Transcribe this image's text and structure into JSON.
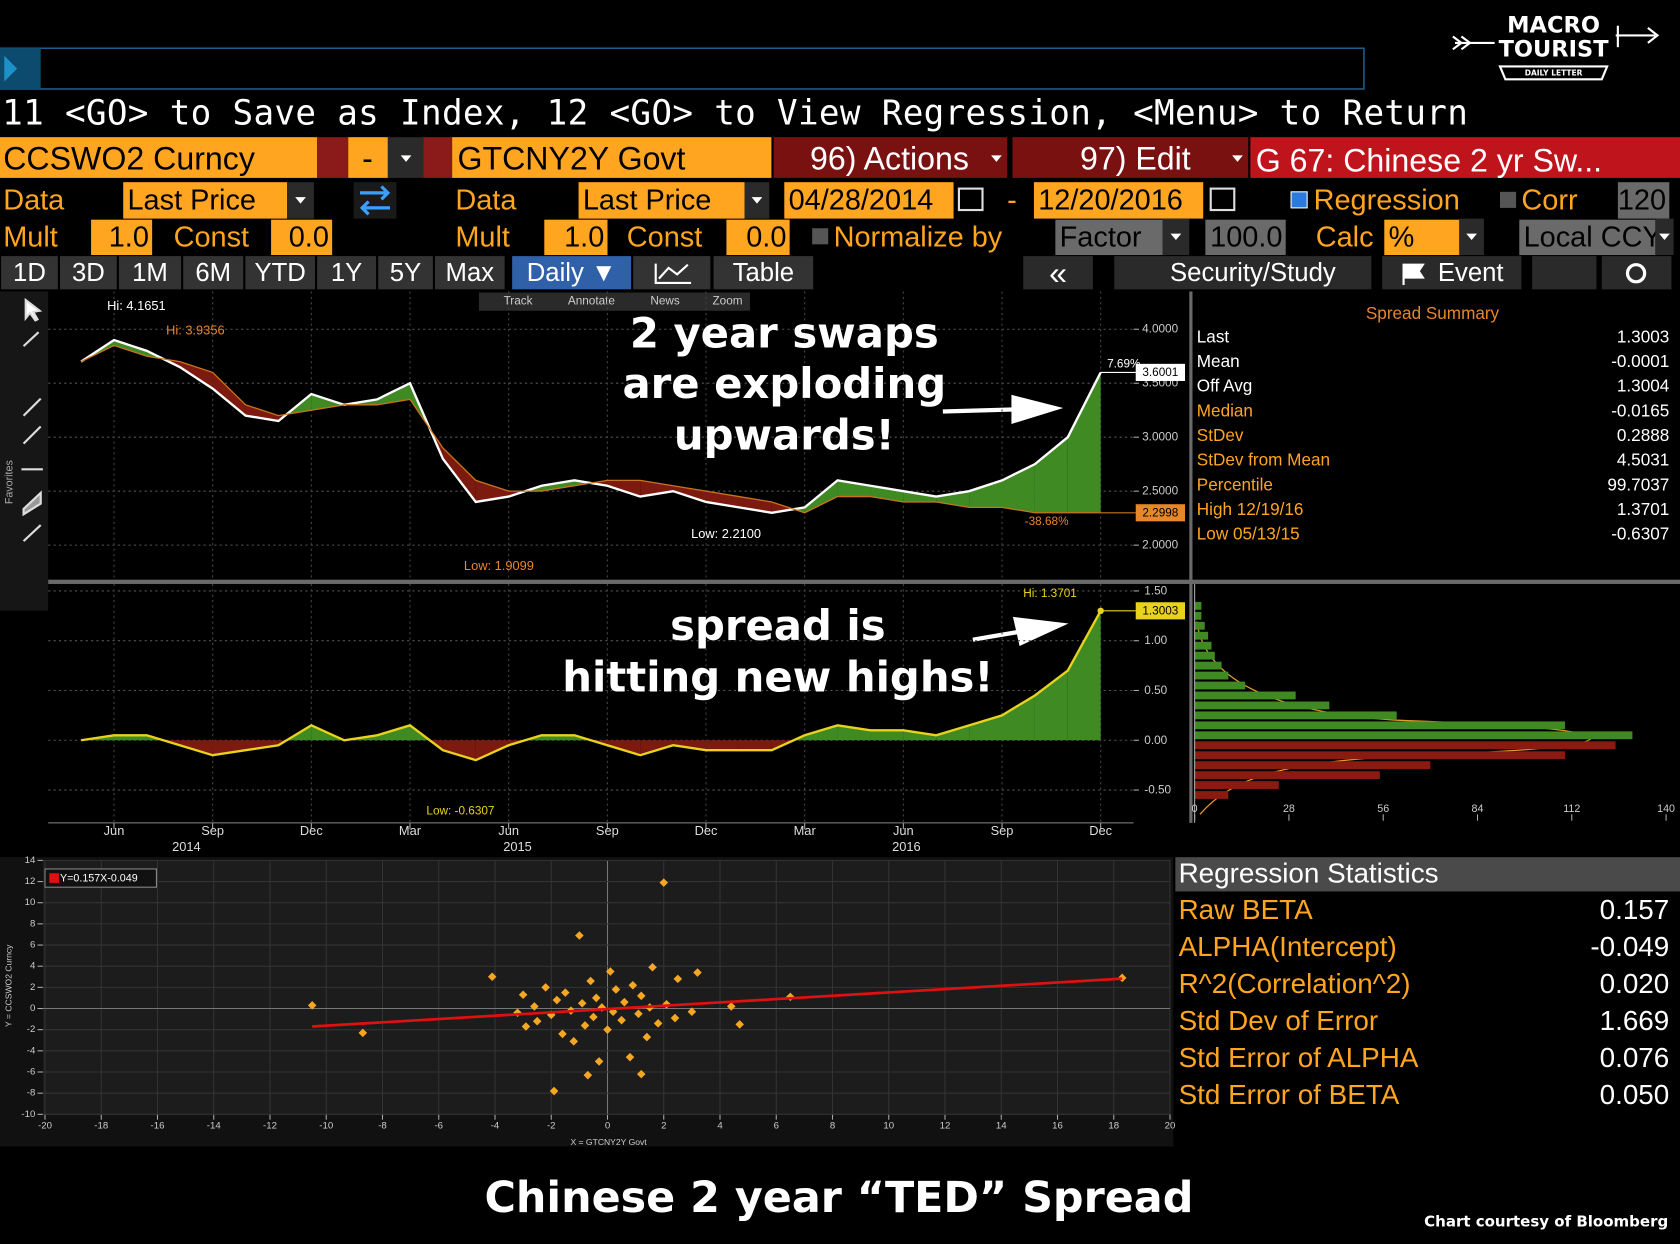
{
  "command_line": "11 <GO> to Save as Index, 12 <GO> to View Regression, <Menu> to Return",
  "logo": {
    "line1": "MACRO",
    "line2": "TOURIST",
    "tag": "DAILY LETTER"
  },
  "toolbar": {
    "row1": {
      "security1": "CCSWO2 Curncy",
      "op": "-",
      "security2": "GTCNY2Y Govt",
      "actions": "96) Actions",
      "edit": "97) Edit",
      "title": "G 67: Chinese 2 yr Sw..."
    },
    "row2": [
      "Data",
      "Last Price",
      "Data",
      "Last Price",
      "04/28/2014",
      "-",
      "12/20/2016",
      "Regression",
      "Corr",
      "120"
    ],
    "row3": [
      "Mult",
      "1.0",
      "Const",
      "0.0",
      "Mult",
      "1.0",
      "Const",
      "0.0",
      "Normalize by",
      "Factor",
      "100.0",
      "Calc",
      "%",
      "Local CCY"
    ],
    "tabs": [
      "1D",
      "3D",
      "1M",
      "6M",
      "YTD",
      "1Y",
      "5Y",
      "Max",
      "Daily ▼",
      "Table"
    ],
    "right_tabs": [
      "«",
      "Security/Study",
      "Event"
    ]
  },
  "favorites": "Favorites",
  "chart_menu": [
    "Track",
    "Annotate",
    "News",
    "Zoom"
  ],
  "callouts": {
    "swaps": [
      "2 year swaps",
      "are exploding",
      "upwards!"
    ],
    "spread": [
      "spread is",
      "hitting new highs!"
    ]
  },
  "chart_data": [
    {
      "type": "line",
      "x": [
        "2014-05",
        "2014-06",
        "2014-07",
        "2014-08",
        "2014-09",
        "2014-10",
        "2014-11",
        "2014-12",
        "2015-01",
        "2015-02",
        "2015-03",
        "2015-04",
        "2015-05",
        "2015-06",
        "2015-07",
        "2015-08",
        "2015-09",
        "2015-10",
        "2015-11",
        "2015-12",
        "2016-01",
        "2016-02",
        "2016-03",
        "2016-04",
        "2016-05",
        "2016-06",
        "2016-07",
        "2016-08",
        "2016-09",
        "2016-10",
        "2016-11",
        "2016-12"
      ],
      "xlim": [
        "2014-04",
        "2017-01"
      ],
      "ylim": [
        1.69,
        4.35
      ],
      "yticks": [
        {
          "value": 2,
          "label": "2.0000"
        },
        {
          "value": 2.5,
          "label": "2.5000"
        },
        {
          "value": 3,
          "label": "3.0000"
        },
        {
          "value": 3.5,
          "label": "3.5000"
        },
        {
          "value": 4,
          "label": "4.0000"
        }
      ],
      "grid": true,
      "fill_colors": {
        "above": "#3f8a23",
        "below": "#7d1a10"
      },
      "series": [
        {
          "color": "#ffffff",
          "end_label": "3.6001",
          "change_label": "7.69%",
          "values": [
            3.7,
            3.9,
            3.8,
            3.65,
            3.45,
            3.2,
            3.15,
            3.4,
            3.3,
            3.35,
            3.5,
            2.8,
            2.4,
            2.45,
            2.55,
            2.6,
            2.55,
            2.45,
            2.5,
            2.4,
            2.35,
            2.3,
            2.35,
            2.6,
            2.55,
            2.5,
            2.45,
            2.5,
            2.6,
            2.75,
            3.0,
            3.6001
          ]
        },
        {
          "color": "#c8741e",
          "end_label": "2.2998",
          "change_label": "-38.68%",
          "values": [
            3.7,
            3.85,
            3.75,
            3.7,
            3.6,
            3.3,
            3.2,
            3.25,
            3.3,
            3.3,
            3.35,
            2.9,
            2.6,
            2.5,
            2.5,
            2.55,
            2.6,
            2.6,
            2.55,
            2.5,
            2.45,
            2.4,
            2.3,
            2.45,
            2.45,
            2.4,
            2.4,
            2.35,
            2.35,
            2.3,
            2.3,
            2.2998
          ]
        }
      ],
      "annotations": [
        "Hi: 4.1651",
        "Hi: 3.9356",
        "Low: 1.9099",
        "Low: 2.2100"
      ]
    },
    {
      "type": "area",
      "x": [
        "2014-05",
        "2014-06",
        "2014-07",
        "2014-08",
        "2014-09",
        "2014-10",
        "2014-11",
        "2014-12",
        "2015-01",
        "2015-02",
        "2015-03",
        "2015-04",
        "2015-05",
        "2015-06",
        "2015-07",
        "2015-08",
        "2015-09",
        "2015-10",
        "2015-11",
        "2015-12",
        "2016-01",
        "2016-02",
        "2016-03",
        "2016-04",
        "2016-05",
        "2016-06",
        "2016-07",
        "2016-08",
        "2016-09",
        "2016-10",
        "2016-11",
        "2016-12"
      ],
      "xlim": [
        "2014-04",
        "2017-01"
      ],
      "xticks": [
        {
          "value": "2014-06",
          "label": "Jun"
        },
        {
          "value": "2014-09",
          "label": "Sep"
        },
        {
          "value": "2014-12",
          "label": "Dec"
        },
        {
          "value": "2015-03",
          "label": "Mar"
        },
        {
          "value": "2015-06",
          "label": "Jun"
        },
        {
          "value": "2015-09",
          "label": "Sep"
        },
        {
          "value": "2015-12",
          "label": "Dec"
        },
        {
          "value": "2016-03",
          "label": "Mar"
        },
        {
          "value": "2016-06",
          "label": "Jun"
        },
        {
          "value": "2016-09",
          "label": "Sep"
        },
        {
          "value": "2016-12",
          "label": "Dec"
        }
      ],
      "x_years": [
        "2014",
        "2015",
        "2016"
      ],
      "ylim": [
        -0.83,
        1.57
      ],
      "yticks": [
        {
          "value": -0.5,
          "label": "-0.50"
        },
        {
          "value": 0,
          "label": "0.00"
        },
        {
          "value": 0.5,
          "label": "0.50"
        },
        {
          "value": 1,
          "label": "1.00"
        },
        {
          "value": 1.5,
          "label": "1.50"
        }
      ],
      "grid": true,
      "color": "#e8d21d",
      "fill_colors": {
        "above": "#3f8a23",
        "below": "#7d1a10"
      },
      "values": [
        0,
        0.05,
        0.05,
        -0.05,
        -0.15,
        -0.1,
        -0.05,
        0.15,
        0,
        0.05,
        0.15,
        -0.1,
        -0.2,
        -0.05,
        0.05,
        0.05,
        -0.05,
        -0.15,
        -0.05,
        -0.1,
        -0.1,
        -0.1,
        0.05,
        0.15,
        0.1,
        0.1,
        0.05,
        0.15,
        0.25,
        0.45,
        0.7,
        1.3003
      ],
      "end_label": "1.3003",
      "annotations": [
        "Hi: 1.3701",
        "Low: -0.6307"
      ]
    },
    {
      "type": "histogram",
      "orientation": "horizontal",
      "bins": [
        -0.6,
        -0.5,
        -0.4,
        -0.3,
        -0.2,
        -0.1,
        0,
        0.1,
        0.2,
        0.3,
        0.4,
        0.5,
        0.6,
        0.7,
        0.8,
        0.9,
        1.0,
        1.1,
        1.2,
        1.3,
        1.4
      ],
      "counts": [
        10,
        25,
        55,
        70,
        110,
        125,
        130,
        110,
        60,
        40,
        30,
        15,
        10,
        8,
        6,
        5,
        4,
        3,
        2,
        2
      ],
      "xlim": [
        0,
        140
      ],
      "xticks": [
        0,
        28,
        56,
        84,
        112,
        140
      ],
      "positive_color": "#3f8a23",
      "negative_color": "#8b1a10"
    },
    {
      "type": "scatter",
      "x": [
        -10.5,
        -8.7,
        -4.1,
        -3.2,
        -3,
        -2.6,
        -2.5,
        -2.2,
        -2,
        -1.8,
        -1.6,
        -1.5,
        -1.3,
        -1.2,
        -1,
        -0.9,
        -0.8,
        -0.6,
        -0.5,
        -0.4,
        -0.3,
        -0.2,
        0,
        0.1,
        0.2,
        0.3,
        0.5,
        0.6,
        0.8,
        0.9,
        1.1,
        1.2,
        1.4,
        1.6,
        1.8,
        2,
        2.1,
        2.4,
        2.5,
        3,
        3.2,
        4.4,
        4.7,
        6.5,
        18.3,
        -1.9,
        -0.7,
        1.2,
        -2.9,
        1.5
      ],
      "y": [
        0.3,
        -2.3,
        3.0,
        -0.4,
        1.3,
        0.2,
        -1.2,
        2.0,
        -0.6,
        0.8,
        -2.4,
        1.5,
        -0.2,
        -3.1,
        6.9,
        0.5,
        -1.6,
        2.6,
        -0.8,
        1.0,
        -5,
        0.1,
        -2,
        3.5,
        -0.3,
        1.8,
        -1.1,
        0.6,
        -4.6,
        2.2,
        -0.5,
        1.2,
        -2.7,
        3.9,
        -1.4,
        11.9,
        0.4,
        -0.9,
        2.8,
        -0.3,
        3.4,
        0.2,
        -1.5,
        1.1,
        2.9,
        -7.8,
        -6.3,
        -6.2,
        -1.7,
        0.1
      ],
      "xlim": [
        -20,
        20
      ],
      "ylim": [
        -10,
        14
      ],
      "xticks": [
        -20,
        -18,
        -16,
        -14,
        -12,
        -10,
        -8,
        -6,
        -4,
        -2,
        0,
        2,
        4,
        6,
        8,
        10,
        12,
        14,
        16,
        18,
        20
      ],
      "yticks": [
        -10,
        -8,
        -6,
        -4,
        -2,
        0,
        2,
        4,
        6,
        8,
        10,
        12,
        14
      ],
      "xlabel": "X = GTCNY2Y Govt",
      "ylabel": "Y = CCSWO2 Curncy",
      "legend": "Y=0.157X-0.049",
      "color": "#f5a623",
      "line_color": "#e01010",
      "grid": true
    }
  ],
  "spread_summary": {
    "title": "Spread Summary",
    "rows": [
      [
        "Last",
        1.3003
      ],
      [
        "Mean",
        -0.0001
      ],
      [
        "Off Avg",
        1.3004
      ],
      [
        "Median",
        -0.0165
      ],
      [
        "StDev",
        0.2888
      ],
      [
        "StDev from Mean",
        4.5031
      ],
      [
        "Percentile",
        99.7037
      ],
      [
        "High 12/19/16",
        1.3701
      ],
      [
        "Low 05/13/15",
        -0.6307
      ]
    ]
  },
  "regression_statistics": {
    "title": "Regression Statistics",
    "rows": [
      [
        "Raw BETA",
        "0.157"
      ],
      [
        "ALPHA(Intercept)",
        "-0.049"
      ],
      [
        "R^2(Correlation^2)",
        "0.020"
      ],
      [
        "Std Dev of Error",
        "1.669"
      ],
      [
        "Std Error of ALPHA",
        "0.076"
      ],
      [
        "Std Error of BETA",
        "0.050"
      ]
    ]
  },
  "footer": {
    "title": "Chinese 2 year “TED” Spread",
    "credit": "Chart courtesy of Bloomberg"
  }
}
